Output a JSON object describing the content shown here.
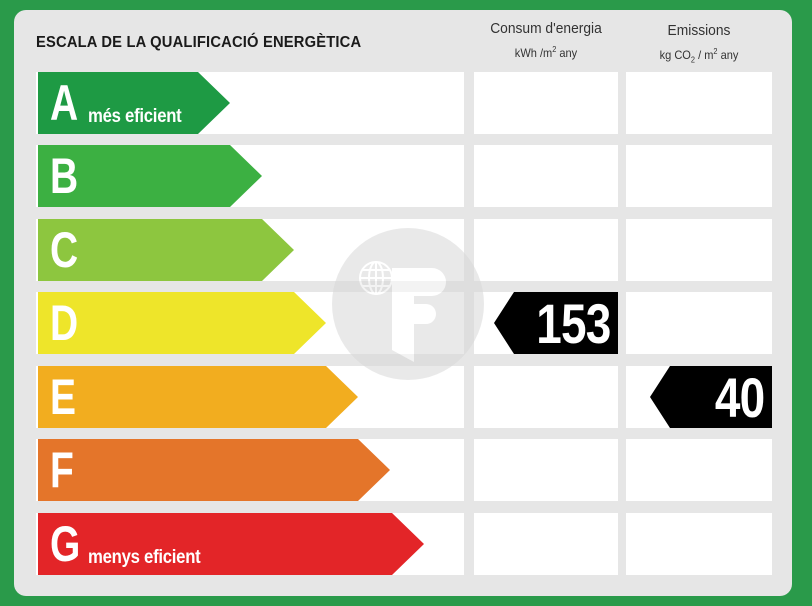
{
  "title": "ESCALA DE LA QUALIFICACIÓ ENERGÈTICA",
  "columns": {
    "consumption": {
      "label": "Consum d'energia",
      "unit_prefix": "kWh /m",
      "unit_exp": "2",
      "unit_suffix": " any"
    },
    "emissions": {
      "label": "Emissions",
      "unit_a": "kg CO",
      "unit_sub": "2",
      "unit_b": " / m",
      "unit_exp": "2",
      "unit_suffix": "  any"
    }
  },
  "classes": [
    {
      "letter": "A",
      "note": "més eficient",
      "color": "#1e9a44"
    },
    {
      "letter": "B",
      "note": "",
      "color": "#3cb042"
    },
    {
      "letter": "C",
      "note": "",
      "color": "#8dc63f"
    },
    {
      "letter": "D",
      "note": "",
      "color": "#eee52a"
    },
    {
      "letter": "E",
      "note": "",
      "color": "#f2ad1f"
    },
    {
      "letter": "F",
      "note": "",
      "color": "#e4752a"
    },
    {
      "letter": "G",
      "note": "menys eficient",
      "color": "#e32528"
    }
  ],
  "rating": {
    "consumption": {
      "class": "D",
      "value": "153"
    },
    "emissions": {
      "class": "E",
      "value": "40"
    }
  },
  "logo_icon": "watermark-logo"
}
